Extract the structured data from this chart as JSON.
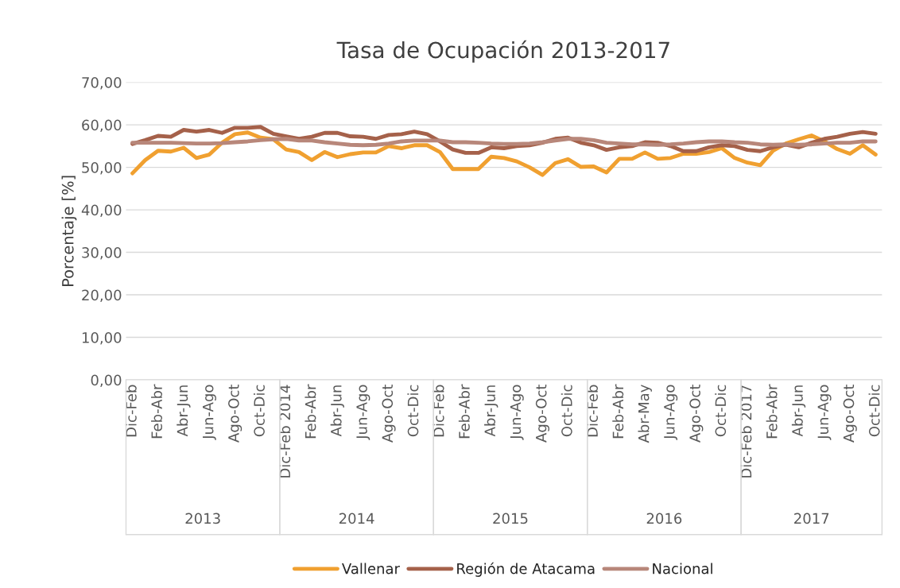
{
  "chart_data": {
    "type": "line",
    "title": "Tasa de Ocupación 2013-2017",
    "ylabel": "Porcentaje [%]",
    "categories": [
      "Dic-Feb",
      null,
      "Feb-Abr",
      null,
      "Abr-Jun",
      null,
      "Jun-Ago",
      null,
      "Ago-Oct",
      null,
      "Oct-Dic",
      null,
      "Dic-Feb 2014",
      null,
      "Feb-Abr",
      null,
      "Abr-Jun",
      null,
      "Jun-Ago",
      null,
      "Ago-Oct",
      null,
      "Oct-Dic",
      null,
      "Dic-Feb",
      null,
      "Feb-Abr",
      null,
      "Abr-Jun",
      null,
      "Jun-Ago",
      null,
      "Ago-Oct",
      null,
      "Oct-Dic",
      null,
      "Dic-Feb",
      null,
      "Feb-Abr",
      null,
      "Abr-May",
      null,
      "Jun-Ago",
      null,
      "Ago-Oct",
      null,
      "Oct-Dic",
      null,
      "Dic-Feb 2017",
      null,
      "Feb-Abr",
      null,
      "Abr-Jun",
      null,
      "Jun-Ago",
      null,
      "Ago-Oct",
      null,
      "Oct-Dic"
    ],
    "annotations": [
      "2013",
      "2014",
      "2015",
      "2016",
      "2017"
    ],
    "series": [
      {
        "name": "Vallenar",
        "color": "#f0a030",
        "values": [
          48.6,
          51.7,
          53.9,
          53.7,
          54.6,
          52.2,
          53.0,
          55.8,
          57.8,
          58.2,
          57.0,
          56.6,
          54.2,
          53.6,
          51.7,
          53.6,
          52.4,
          53.1,
          53.5,
          53.5,
          55.0,
          54.5,
          55.2,
          55.2,
          53.6,
          49.6,
          49.6,
          49.6,
          52.5,
          52.2,
          51.4,
          50.0,
          48.2,
          51.0,
          51.9,
          50.1,
          50.2,
          48.8,
          52.0,
          52.0,
          53.5,
          52.0,
          52.2,
          53.2,
          53.2,
          53.6,
          54.5,
          52.2,
          51.1,
          50.5,
          53.9,
          55.6,
          56.6,
          57.5,
          56.1,
          54.3,
          53.2,
          55.2,
          53.0
        ]
      },
      {
        "name": "Región de Atacama",
        "color": "#a5614a",
        "values": [
          55.5,
          56.4,
          57.4,
          57.2,
          58.8,
          58.4,
          58.8,
          58.1,
          59.3,
          59.3,
          59.5,
          57.9,
          57.3,
          56.7,
          57.2,
          58.1,
          58.1,
          57.3,
          57.2,
          56.7,
          57.6,
          57.8,
          58.4,
          57.8,
          56.1,
          54.2,
          53.4,
          53.4,
          54.7,
          54.5,
          55.0,
          55.2,
          55.8,
          56.7,
          57.0,
          55.8,
          55.2,
          54.1,
          54.7,
          55.0,
          55.9,
          55.8,
          55.0,
          53.8,
          53.8,
          54.7,
          55.2,
          55.0,
          54.1,
          53.8,
          54.7,
          55.3,
          54.7,
          55.8,
          56.7,
          57.2,
          57.9,
          58.3,
          57.9
        ]
      },
      {
        "name": "Nacional",
        "color": "#b8877a",
        "values": [
          55.8,
          55.8,
          55.8,
          55.8,
          55.7,
          55.6,
          55.6,
          55.7,
          55.9,
          56.1,
          56.4,
          56.6,
          56.7,
          56.3,
          56.3,
          55.9,
          55.6,
          55.3,
          55.2,
          55.3,
          55.6,
          56.1,
          56.3,
          56.3,
          56.3,
          55.9,
          55.9,
          55.8,
          55.6,
          55.5,
          55.5,
          55.6,
          55.9,
          56.3,
          56.7,
          56.7,
          56.4,
          55.8,
          55.6,
          55.4,
          55.4,
          55.3,
          55.4,
          55.6,
          55.9,
          56.1,
          56.1,
          55.9,
          55.8,
          55.4,
          55.3,
          55.4,
          55.3,
          55.4,
          55.6,
          55.8,
          55.8,
          56.1,
          56.1
        ]
      }
    ],
    "ylim": [
      0,
      70
    ],
    "yticks": [
      {
        "value": 0,
        "label": "0,00"
      },
      {
        "value": 10,
        "label": "10,00"
      },
      {
        "value": 20,
        "label": "20,00"
      },
      {
        "value": 30,
        "label": "30,00"
      },
      {
        "value": 40,
        "label": "40,00"
      },
      {
        "value": 50,
        "label": "50,00"
      },
      {
        "value": 60,
        "label": "60,00"
      },
      {
        "value": 70,
        "label": "70,00"
      }
    ],
    "grid": "y",
    "legend": "bottom",
    "marker": "none",
    "line_style": "solid"
  }
}
